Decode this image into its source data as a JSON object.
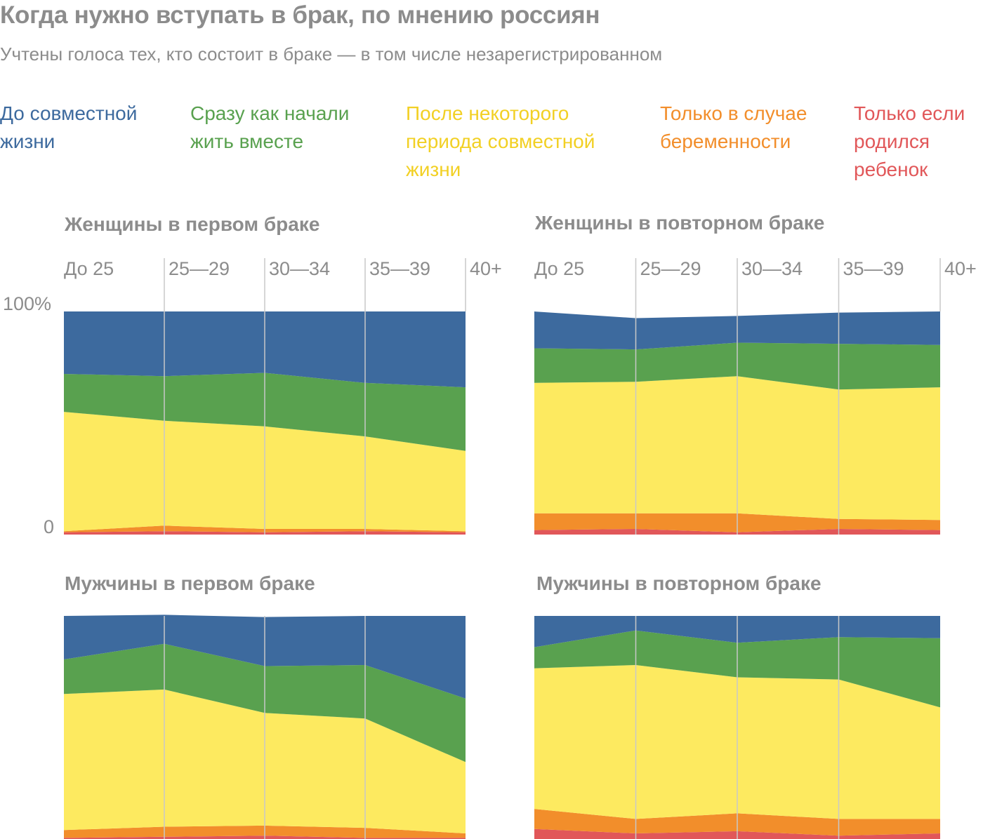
{
  "title": "Когда нужно вступать в брак, по мнению россиян",
  "subtitle": "Учтены голоса тех, кто состоит в браке — в том числе незарегистрированном",
  "legend": [
    {
      "label": "До совместной\nжизни",
      "color": "#3d6a9e"
    },
    {
      "label": "Сразу как начали\nжить вместе",
      "color": "#59a14f"
    },
    {
      "label": "После некоторого\nпериода совместной\nжизни",
      "color": "#f2d024"
    },
    {
      "label": "Только в случае\nбеременности",
      "color": "#f28e2b"
    },
    {
      "label": "Только если\nродился\nребенок",
      "color": "#e15759"
    }
  ],
  "chart_data": [
    {
      "type": "area",
      "stacked": true,
      "title": "Женщины в первом браке",
      "categories": [
        "До 25",
        "25—29",
        "30—34",
        "35—39",
        "40+"
      ],
      "ylim": [
        0,
        100
      ],
      "ytick_labels": [
        "0",
        "100%"
      ],
      "series": [
        {
          "name": "Только если родился ребенок",
          "values": [
            1,
            1.5,
            1,
            1.5,
            1
          ]
        },
        {
          "name": "Только в случае беременности",
          "values": [
            0.5,
            2.5,
            1.5,
            1,
            0.5
          ]
        },
        {
          "name": "После некоторого периода совместной жизни",
          "values": [
            53.5,
            47,
            46,
            41.5,
            36
          ]
        },
        {
          "name": "Сразу как начали жить вместе",
          "values": [
            17,
            20,
            24,
            24,
            28.5
          ]
        },
        {
          "name": "До совместной жизни",
          "values": [
            28,
            29,
            27.5,
            32,
            34
          ]
        }
      ]
    },
    {
      "type": "area",
      "stacked": true,
      "title": "Женщины в повторном браке",
      "categories": [
        "До 25",
        "25—29",
        "30—34",
        "35—39",
        "40+"
      ],
      "ylim": [
        0,
        100
      ],
      "series": [
        {
          "name": "Только если родился ребенок",
          "values": [
            2,
            2.5,
            1,
            2.5,
            2
          ]
        },
        {
          "name": "Только в случае беременности",
          "values": [
            7.5,
            7,
            8.5,
            4.5,
            4.5
          ]
        },
        {
          "name": "После некоторого периода совместной жизни",
          "values": [
            58.5,
            59,
            61.5,
            58,
            59.5
          ]
        },
        {
          "name": "Сразу как начали жить вместе",
          "values": [
            15.5,
            14.5,
            15,
            20.5,
            19
          ]
        },
        {
          "name": "До совместной жизни",
          "values": [
            16.5,
            14,
            12,
            14,
            15
          ]
        }
      ]
    },
    {
      "type": "area",
      "stacked": true,
      "title": "Мужчины в первом браке",
      "categories": [
        "До 25",
        "25—29",
        "30—34",
        "35—39",
        "40+"
      ],
      "ylim": [
        0,
        100
      ],
      "series": [
        {
          "name": "Только если родился ребенок",
          "values": [
            0.5,
            1,
            1.5,
            0.5,
            0.5
          ]
        },
        {
          "name": "Только в случае беременности",
          "values": [
            3.5,
            4.5,
            4.5,
            4.5,
            2
          ]
        },
        {
          "name": "После некоторого периода совместной жизни",
          "values": [
            61,
            61.5,
            50.5,
            49,
            32
          ]
        },
        {
          "name": "Сразу как начали жить вместе",
          "values": [
            15.5,
            20.5,
            21,
            24,
            28.5
          ]
        },
        {
          "name": "До совместной жизни",
          "values": [
            19.5,
            13,
            22,
            22,
            37
          ]
        }
      ]
    },
    {
      "type": "area",
      "stacked": true,
      "title": "Мужчины в повторном браке",
      "categories": [
        "До 25",
        "25—29",
        "30—34",
        "35—39",
        "40+"
      ],
      "ylim": [
        0,
        100
      ],
      "series": [
        {
          "name": "Только если родился ребенок",
          "values": [
            4.5,
            2.5,
            3.5,
            1.5,
            2.5
          ]
        },
        {
          "name": "Только в случае беременности",
          "values": [
            9,
            6.5,
            8,
            7.5,
            6.5
          ]
        },
        {
          "name": "После некоторого периода совместной жизни",
          "values": [
            63,
            69,
            61,
            62.5,
            50
          ]
        },
        {
          "name": "Сразу как начали жить вместе",
          "values": [
            9.5,
            15.5,
            15.5,
            19,
            31
          ]
        },
        {
          "name": "До совместной жизни",
          "values": [
            14,
            6.5,
            12,
            9.5,
            10
          ]
        }
      ]
    }
  ],
  "colors": {
    "До совместной жизни": "#3d6a9e",
    "Сразу как начали жить вместе": "#59a14f",
    "После некоторого периода совместной жизни": "#fdea60",
    "Только в случае беременности": "#f28e2b",
    "Только если родился ребенок": "#e15759",
    "grid": "#c8c8c8",
    "text": "#8c8c8c"
  }
}
